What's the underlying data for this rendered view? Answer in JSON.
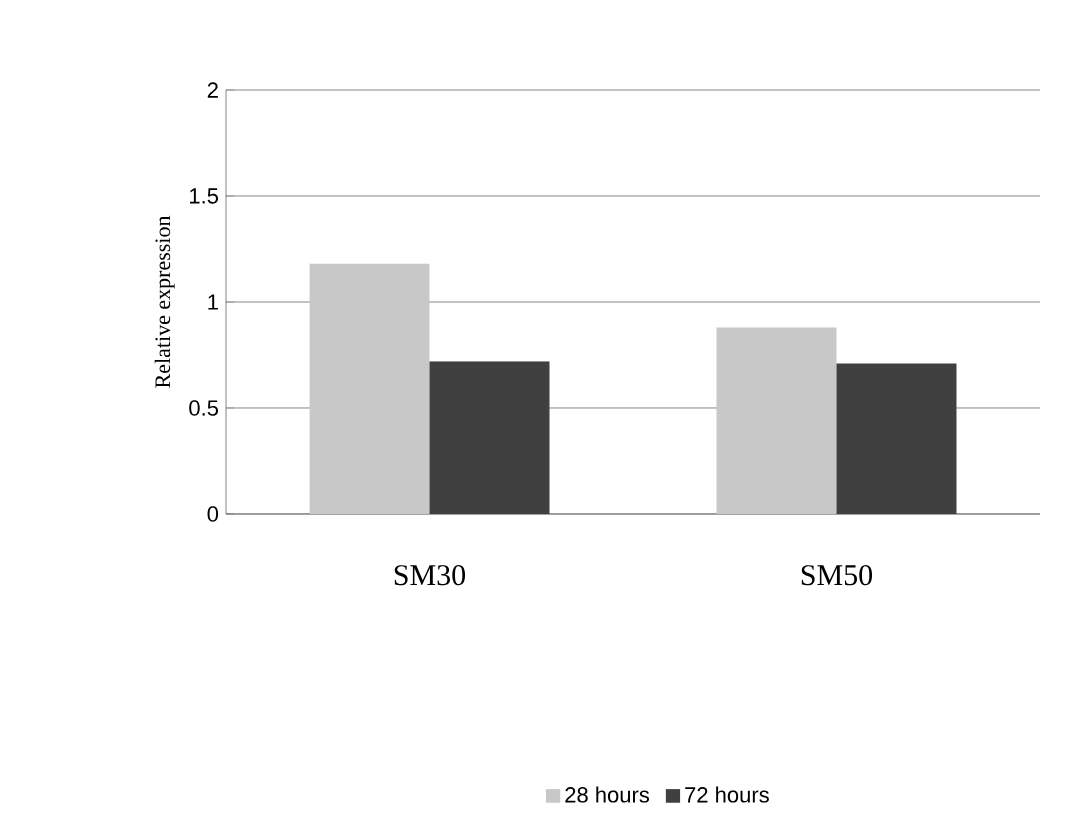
{
  "chart_data": {
    "type": "bar",
    "ylabel": "Relative expression",
    "categories": [
      "SM30",
      "SM50"
    ],
    "series": [
      {
        "name": "28 hours",
        "color": "#c8c8c8",
        "values": [
          1.18,
          0.88
        ]
      },
      {
        "name": "72 hours",
        "color": "#404040",
        "values": [
          0.72,
          0.71
        ]
      }
    ],
    "ylim": [
      0,
      2
    ],
    "yticks": [
      0,
      0.5,
      1,
      1.5,
      2
    ],
    "grid": "y",
    "legend": "bottom"
  }
}
